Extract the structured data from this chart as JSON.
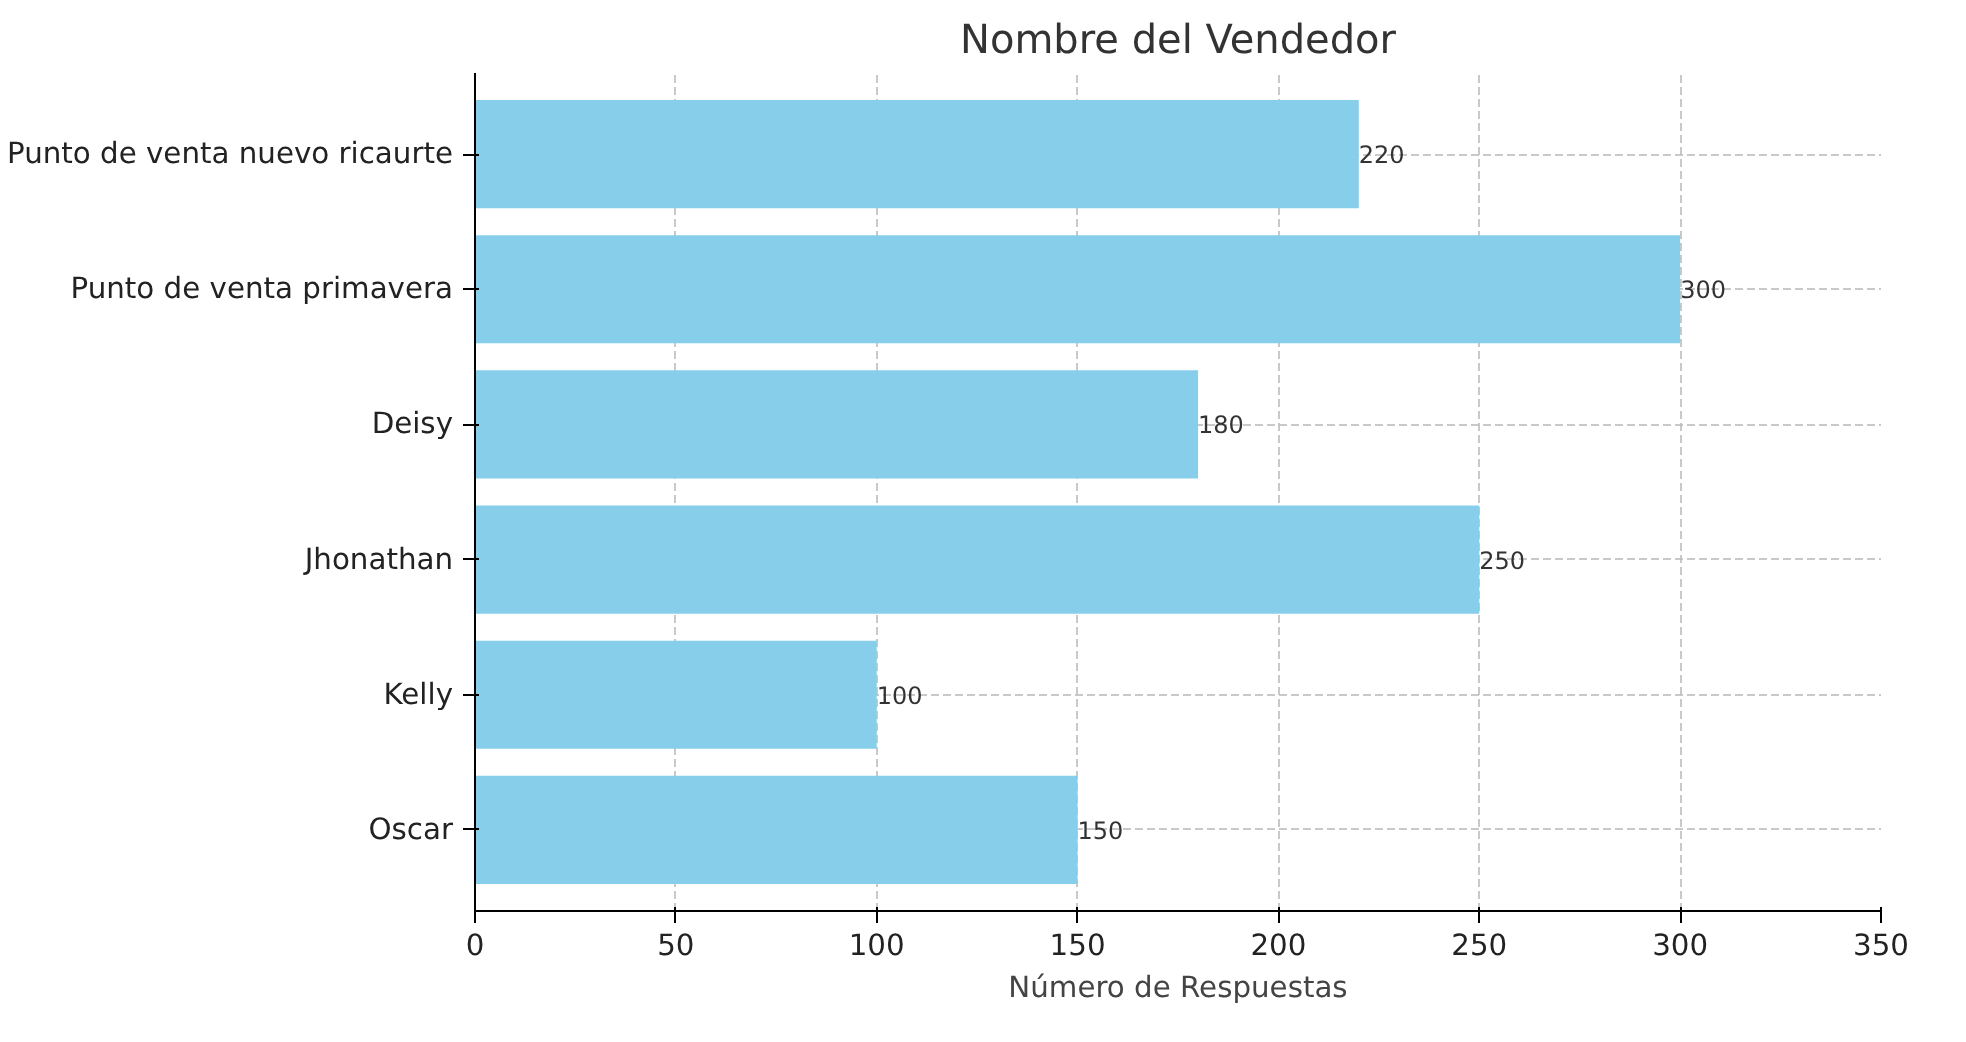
{
  "chart_data": {
    "type": "bar",
    "orientation": "horizontal",
    "title": "Nombre del Vendedor",
    "xlabel": "Número de Respuestas",
    "categories": [
      "Punto de venta nuevo ricaurte",
      "Punto de venta primavera",
      "Deisy",
      "Jhonathan",
      "Kelly",
      "Oscar"
    ],
    "values": [
      220,
      300,
      180,
      250,
      100,
      150
    ],
    "color": "#87ceeb",
    "xlim": [
      0,
      350
    ],
    "xticks": [
      0,
      50,
      100,
      150,
      200,
      250,
      300,
      350
    ],
    "grid": true,
    "data_labels": true
  }
}
